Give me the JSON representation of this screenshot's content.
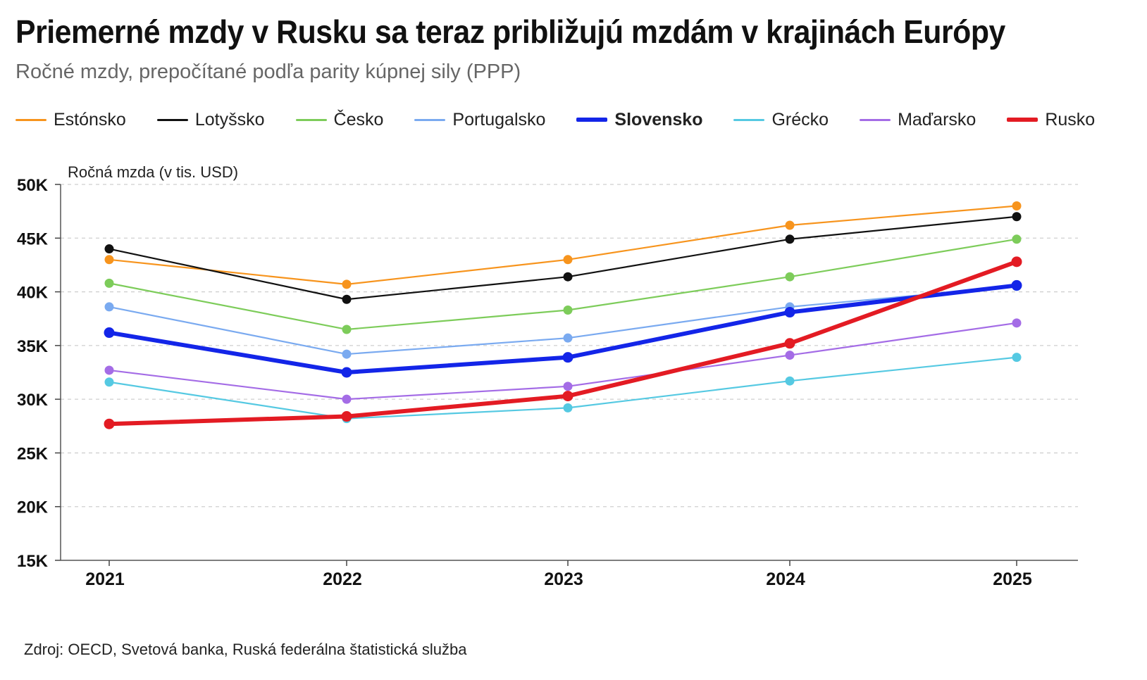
{
  "title": "Priemerné mzdy v Rusku sa teraz približujú mzdám v krajinách Európy",
  "subtitle": "Ročné mzdy, prepočítané podľa parity kúpnej sily (PPP)",
  "source": "Zdroj: OECD, Svetová banka, Ruská federálna štatistická služba",
  "chart_data": {
    "type": "line",
    "title": "Priemerné mzdy v Rusku sa teraz približujú mzdám v krajinách Európy",
    "subtitle": "Ročné mzdy, prepočítané podľa parity kúpnej sily (PPP)",
    "xlabel": "",
    "ylabel": "Ročná mzda (v tis. USD)",
    "x": [
      "2021",
      "2022",
      "2023",
      "2024",
      "2025"
    ],
    "ylim": [
      15,
      50
    ],
    "yticks": [
      15,
      20,
      25,
      30,
      35,
      40,
      45,
      50
    ],
    "ytick_labels": [
      "15K",
      "20K",
      "25K",
      "30K",
      "35K",
      "40K",
      "45K",
      "50K"
    ],
    "grid": true,
    "legend_position": "top",
    "series": [
      {
        "name": "Estónsko",
        "color": "#f7941d",
        "emphasis": false,
        "values": [
          43.0,
          40.7,
          43.0,
          46.2,
          48.0
        ]
      },
      {
        "name": "Lotyšsko",
        "color": "#111111",
        "emphasis": false,
        "values": [
          44.0,
          39.3,
          41.4,
          44.9,
          47.0
        ]
      },
      {
        "name": "Česko",
        "color": "#7dcc5a",
        "emphasis": false,
        "values": [
          40.8,
          36.5,
          38.3,
          41.4,
          44.9
        ]
      },
      {
        "name": "Portugalsko",
        "color": "#7aaaf0",
        "emphasis": false,
        "values": [
          38.6,
          34.2,
          35.7,
          38.6,
          40.5
        ]
      },
      {
        "name": "Slovensko",
        "color": "#1325e8",
        "emphasis": true,
        "values": [
          36.2,
          32.5,
          33.9,
          38.1,
          40.6
        ]
      },
      {
        "name": "Grécko",
        "color": "#55c9e2",
        "emphasis": false,
        "values": [
          31.6,
          28.2,
          29.2,
          31.7,
          33.9
        ]
      },
      {
        "name": "Maďarsko",
        "color": "#a46ce6",
        "emphasis": false,
        "values": [
          32.7,
          30.0,
          31.2,
          34.1,
          37.1
        ]
      },
      {
        "name": "Rusko",
        "color": "#e31b23",
        "emphasis": true,
        "values": [
          27.7,
          28.4,
          30.3,
          35.2,
          42.8
        ]
      }
    ]
  }
}
